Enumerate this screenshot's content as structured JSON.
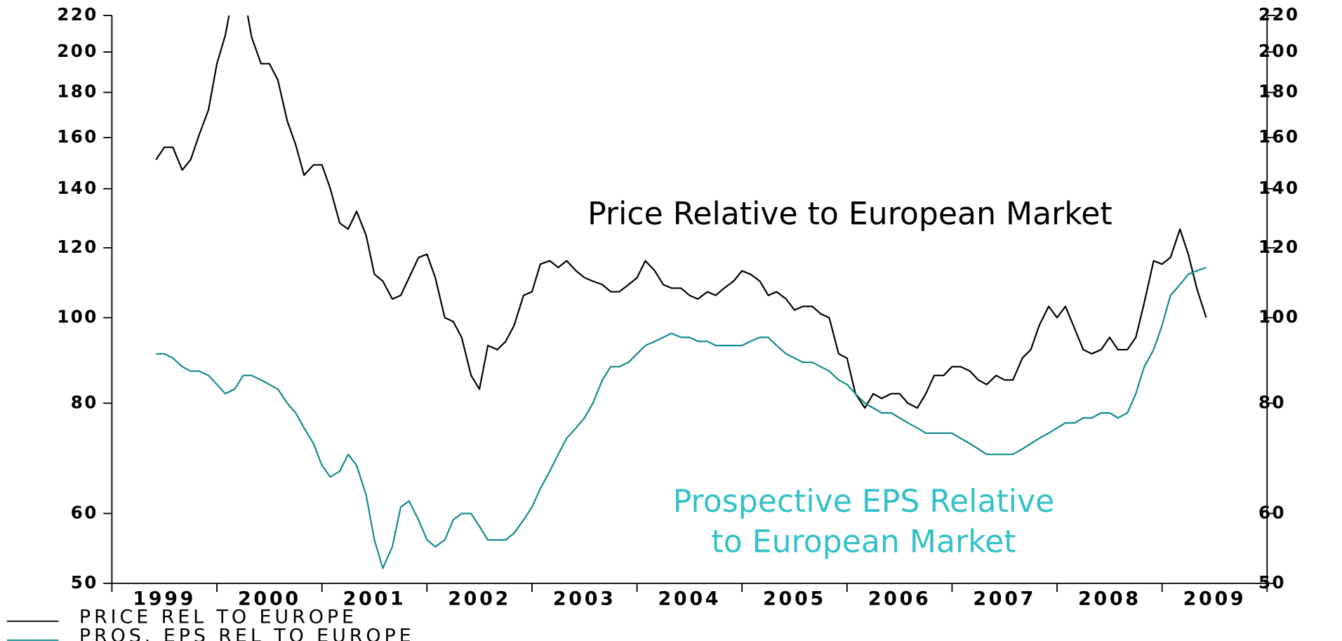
{
  "chart_data": {
    "type": "line",
    "log_y": true,
    "legend": "bottom-left",
    "annotations": [
      {
        "text": [
          "Price Relative to European Market"
        ],
        "color": "#000000",
        "series": 0
      },
      {
        "text": [
          "Prospective EPS Relative",
          "to European Market"
        ],
        "color": "#33c1c7",
        "series": 1
      }
    ],
    "xlim": [
      1999,
      2010
    ],
    "xticks": [
      1999,
      2000,
      2001,
      2002,
      2003,
      2004,
      2005,
      2006,
      2007,
      2008,
      2009,
      2010
    ],
    "xlabels": [
      "1999",
      "2000",
      "2001",
      "2002",
      "2003",
      "2004",
      "2005",
      "2006",
      "2007",
      "2008",
      "2009"
    ],
    "ylim": [
      50,
      220
    ],
    "yticks": [
      50,
      60,
      80,
      100,
      120,
      140,
      160,
      180,
      200,
      220
    ],
    "x": [
      1999.42,
      1999.5,
      1999.58,
      1999.67,
      1999.75,
      1999.83,
      1999.92,
      2000,
      2000.08,
      2000.17,
      2000.25,
      2000.33,
      2000.42,
      2000.5,
      2000.58,
      2000.67,
      2000.75,
      2000.83,
      2000.92,
      2001,
      2001.08,
      2001.17,
      2001.25,
      2001.33,
      2001.42,
      2001.5,
      2001.58,
      2001.67,
      2001.75,
      2001.83,
      2001.92,
      2002,
      2002.08,
      2002.17,
      2002.25,
      2002.33,
      2002.42,
      2002.5,
      2002.58,
      2002.67,
      2002.75,
      2002.83,
      2002.92,
      2003,
      2003.08,
      2003.17,
      2003.25,
      2003.33,
      2003.42,
      2003.5,
      2003.58,
      2003.67,
      2003.75,
      2003.83,
      2003.92,
      2004,
      2004.08,
      2004.17,
      2004.25,
      2004.33,
      2004.42,
      2004.5,
      2004.58,
      2004.67,
      2004.75,
      2004.83,
      2004.92,
      2005,
      2005.08,
      2005.17,
      2005.25,
      2005.33,
      2005.42,
      2005.5,
      2005.58,
      2005.67,
      2005.75,
      2005.83,
      2005.92,
      2006,
      2006.08,
      2006.17,
      2006.25,
      2006.33,
      2006.42,
      2006.5,
      2006.58,
      2006.67,
      2006.75,
      2006.83,
      2006.92,
      2007,
      2007.08,
      2007.17,
      2007.25,
      2007.33,
      2007.42,
      2007.5,
      2007.58,
      2007.67,
      2007.75,
      2007.83,
      2007.92,
      2008,
      2008.08,
      2008.17,
      2008.25,
      2008.33,
      2008.42,
      2008.5,
      2008.58,
      2008.67,
      2008.75,
      2008.83,
      2008.92,
      2009,
      2009.08,
      2009.17,
      2009.25,
      2009.33,
      2009.42
    ],
    "series": [
      {
        "name": "PRICE REL TO EUROPE",
        "color": "#000000",
        "values": [
          151,
          156,
          156,
          147,
          151,
          161,
          172,
          194,
          209,
          238,
          235,
          208,
          194,
          194,
          186,
          167,
          157,
          145,
          149,
          149,
          140,
          128,
          126,
          132,
          124,
          112,
          110,
          105,
          106,
          111,
          117,
          118,
          111,
          100,
          99,
          95,
          86,
          83,
          93,
          92,
          94,
          98,
          106,
          107,
          115,
          116,
          114,
          116,
          113,
          111,
          110,
          109,
          107,
          107,
          109,
          111,
          116,
          113,
          109,
          108,
          108,
          106,
          105,
          107,
          106,
          108,
          110,
          113,
          112,
          110,
          106,
          107,
          105,
          102,
          103,
          103,
          101,
          100,
          91,
          90,
          82,
          79,
          82,
          81,
          82,
          82,
          80,
          79,
          82,
          86,
          86,
          88,
          88,
          87,
          85,
          84,
          86,
          85,
          85,
          90,
          92,
          98,
          103,
          100,
          103,
          97,
          92,
          91,
          92,
          95,
          92,
          92,
          95,
          104,
          116,
          115,
          117,
          126,
          118,
          108,
          100
        ]
      },
      {
        "name": "PROS. EPS REL TO EUROPE",
        "color": "#138a8a",
        "values": [
          91,
          91,
          90,
          88,
          87,
          87,
          86,
          84,
          82,
          83,
          86,
          86,
          85,
          84,
          83,
          80,
          78,
          75,
          72,
          68,
          66,
          67,
          70,
          68,
          63,
          56,
          52,
          55,
          61,
          62,
          59,
          56,
          55,
          56,
          59,
          60,
          60,
          58,
          56,
          56,
          56,
          57,
          59,
          61,
          64,
          67,
          70,
          73,
          75,
          77,
          80,
          85,
          88,
          88,
          89,
          91,
          93,
          94,
          95,
          96,
          95,
          95,
          94,
          94,
          93,
          93,
          93,
          93,
          94,
          95,
          95,
          93,
          91,
          90,
          89,
          89,
          88,
          87,
          85,
          84,
          82,
          80,
          79,
          78,
          78,
          77,
          76,
          75,
          74,
          74,
          74,
          74,
          73,
          72,
          71,
          70,
          70,
          70,
          70,
          71,
          72,
          73,
          74,
          75,
          76,
          76,
          77,
          77,
          78,
          78,
          77,
          78,
          82,
          88,
          92,
          98,
          106,
          109,
          112,
          113,
          114
        ]
      }
    ]
  }
}
